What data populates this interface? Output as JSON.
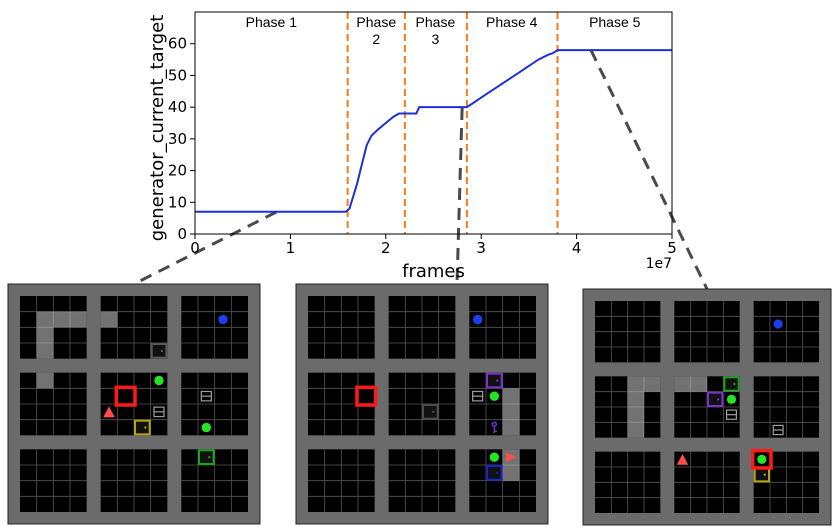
{
  "chart_data": {
    "type": "line",
    "xlabel": "frames",
    "ylabel": "generator_current_target",
    "x_exponent_label": "1e7",
    "xlim": [
      0,
      5
    ],
    "ylim": [
      0,
      70
    ],
    "xticks": [
      "0",
      "1",
      "2",
      "3",
      "4",
      "5"
    ],
    "yticks": [
      "0",
      "10",
      "20",
      "30",
      "40",
      "50",
      "60"
    ],
    "grid": false,
    "line_color": "#1f2fd6",
    "phase_line_color": "#f07c1e",
    "phase_boundaries": [
      1.6,
      2.2,
      2.85,
      3.8
    ],
    "phases": [
      {
        "label_lines": [
          "Phase 1"
        ],
        "x_center": 0.8
      },
      {
        "label_lines": [
          "Phase",
          "2"
        ],
        "x_center": 1.9
      },
      {
        "label_lines": [
          "Phase",
          "3"
        ],
        "x_center": 2.52
      },
      {
        "label_lines": [
          "Phase 4"
        ],
        "x_center": 3.32
      },
      {
        "label_lines": [
          "Phase 5"
        ],
        "x_center": 4.4
      }
    ],
    "series": [
      {
        "x": [
          0,
          1.0,
          1.58,
          1.62,
          1.65,
          1.7,
          1.75,
          1.8,
          1.85,
          1.92,
          2.0,
          2.08,
          2.14,
          2.2,
          2.32,
          2.35,
          2.42,
          2.5,
          2.6,
          2.7,
          2.8,
          2.85,
          2.9,
          3.0,
          3.2,
          3.4,
          3.6,
          3.7,
          3.75,
          3.8,
          4.0,
          4.5,
          5.0
        ],
        "values": [
          7,
          7,
          7,
          8,
          11,
          16,
          22,
          28,
          31,
          33,
          35,
          37,
          38,
          38,
          38,
          40,
          40,
          40,
          40,
          40,
          40,
          40,
          41,
          43,
          47,
          51,
          55,
          56.5,
          57,
          58,
          58,
          58,
          58
        ]
      }
    ]
  },
  "snapshots": [
    {
      "name": "snapshot-phase-1",
      "caption_ref_x": 0.8,
      "path_cells": [
        [
          1,
          1
        ],
        [
          2,
          1
        ],
        [
          3,
          1
        ],
        [
          4,
          1
        ],
        [
          1,
          2
        ],
        [
          1,
          3
        ],
        [
          1,
          4
        ]
      ],
      "objects": [
        {
          "kind": "ball",
          "color": "#1f3df0",
          "cell": [
            10,
            1
          ]
        },
        {
          "kind": "ball",
          "color": "#25e325",
          "cell": [
            7,
            4
          ]
        },
        {
          "kind": "ball",
          "color": "#25e325",
          "cell": [
            9,
            7
          ]
        },
        {
          "kind": "door",
          "color": "#595959",
          "cell": [
            7,
            3
          ]
        },
        {
          "kind": "box",
          "color": "#9e9e9e",
          "cell": [
            9,
            5
          ]
        },
        {
          "kind": "box",
          "color": "#9e9e9e",
          "cell": [
            7,
            6
          ]
        },
        {
          "kind": "door",
          "color": "#b5a31a",
          "cell": [
            6,
            7
          ]
        },
        {
          "kind": "door",
          "color": "#1fa31f",
          "cell": [
            9,
            8
          ]
        },
        {
          "kind": "agent",
          "color": "#ff4d4d",
          "cell": [
            4,
            6
          ]
        },
        {
          "kind": "selection",
          "color": "#ff1a1a",
          "cell": [
            5,
            5
          ]
        }
      ]
    },
    {
      "name": "snapshot-phase-3",
      "caption_ref_x": 2.52,
      "path_cells": [
        [
          10,
          5
        ],
        [
          10,
          6
        ],
        [
          10,
          7
        ],
        [
          10,
          8
        ],
        [
          10,
          9
        ]
      ],
      "objects": [
        {
          "kind": "ball",
          "color": "#1f3df0",
          "cell": [
            8,
            1
          ]
        },
        {
          "kind": "door",
          "color": "#7a33c7",
          "cell": [
            9,
            4
          ]
        },
        {
          "kind": "box",
          "color": "#9e9e9e",
          "cell": [
            8,
            5
          ]
        },
        {
          "kind": "ball",
          "color": "#25e325",
          "cell": [
            9,
            5
          ]
        },
        {
          "kind": "door",
          "color": "#4d4d4d",
          "cell": [
            6,
            6
          ]
        },
        {
          "kind": "key",
          "color": "#7a33c7",
          "cell": [
            9,
            7
          ]
        },
        {
          "kind": "ball",
          "color": "#25e325",
          "cell": [
            9,
            8
          ]
        },
        {
          "kind": "agent",
          "color": "#ff4d4d",
          "cell": [
            10,
            8
          ]
        },
        {
          "kind": "door",
          "color": "#1a23c4",
          "cell": [
            9,
            9
          ]
        },
        {
          "kind": "selection",
          "color": "#ff1a1a",
          "cell": [
            3,
            5
          ]
        }
      ]
    },
    {
      "name": "snapshot-phase-5",
      "caption_ref_x": 4.4,
      "path_cells": [
        [
          2,
          4
        ],
        [
          3,
          4
        ],
        [
          4,
          4
        ],
        [
          5,
          4
        ],
        [
          2,
          5
        ],
        [
          2,
          6
        ],
        [
          2,
          7
        ]
      ],
      "objects": [
        {
          "kind": "ball",
          "color": "#1f3df0",
          "cell": [
            9,
            1
          ]
        },
        {
          "kind": "door",
          "color": "#1fa31f",
          "cell": [
            7,
            4
          ]
        },
        {
          "kind": "door",
          "color": "#7a33c7",
          "cell": [
            6,
            5
          ]
        },
        {
          "kind": "ball",
          "color": "#25e325",
          "cell": [
            7,
            5
          ]
        },
        {
          "kind": "box",
          "color": "#9e9e9e",
          "cell": [
            7,
            6
          ]
        },
        {
          "kind": "box",
          "color": "#9e9e9e",
          "cell": [
            9,
            7
          ]
        },
        {
          "kind": "agent",
          "color": "#ff4d4d",
          "cell": [
            4,
            8
          ]
        },
        {
          "kind": "ball",
          "color": "#25e325",
          "cell": [
            8,
            8
          ]
        },
        {
          "kind": "door",
          "color": "#b5a31a",
          "cell": [
            8,
            9
          ]
        },
        {
          "kind": "selection",
          "color": "#ff1a1a",
          "cell": [
            8,
            8
          ]
        }
      ]
    }
  ]
}
